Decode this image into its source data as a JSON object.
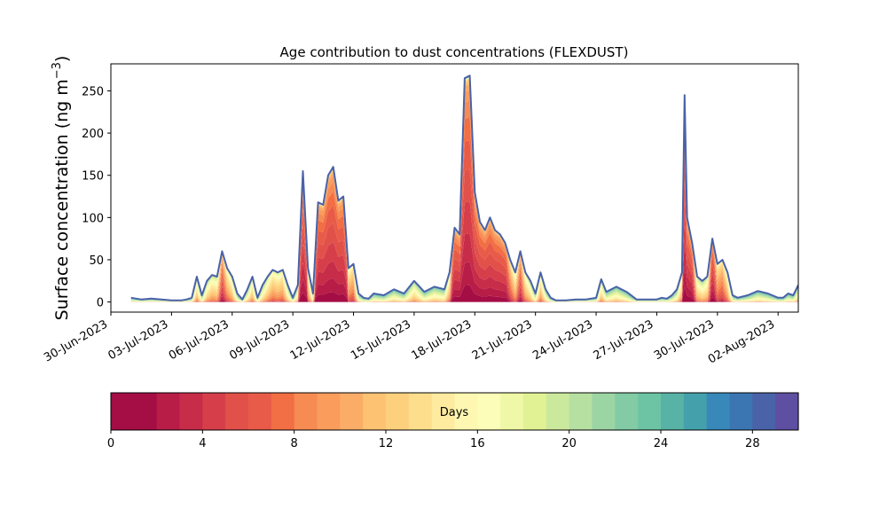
{
  "chart_data": [
    {
      "type": "area",
      "title": "Age contribution to dust concentrations (FLEXDUST)",
      "ylabel": "Surface concentration (ng m",
      "ylabel_sup": "−3",
      "ylabel_close": ")",
      "xlabel": "",
      "ylim": [
        -12,
        282
      ],
      "xlim": [
        "2023-06-30",
        "2023-08-03"
      ],
      "grid": false,
      "y_ticks": [
        0,
        50,
        100,
        150,
        200,
        250
      ],
      "x_ticks": [
        "2023-06-30",
        "2023-07-03",
        "2023-07-06",
        "2023-07-09",
        "2023-07-12",
        "2023-07-15",
        "2023-07-18",
        "2023-07-21",
        "2023-07-24",
        "2023-07-27",
        "2023-07-30",
        "2023-08-02"
      ],
      "x_tick_labels": [
        "30-Jun-2023",
        "03-Jul-2023",
        "06-Jul-2023",
        "09-Jul-2023",
        "12-Jul-2023",
        "15-Jul-2023",
        "18-Jul-2023",
        "21-Jul-2023",
        "24-Jul-2023",
        "27-Jul-2023",
        "30-Jul-2023",
        "02-Aug-2023"
      ],
      "total_color": "#4a62a8",
      "total": [
        [
          "2023-07-01T00:00",
          5
        ],
        [
          "2023-07-01T12:00",
          3
        ],
        [
          "2023-07-02T00:00",
          4
        ],
        [
          "2023-07-02T12:00",
          3
        ],
        [
          "2023-07-03T00:00",
          2
        ],
        [
          "2023-07-03T12:00",
          2
        ],
        [
          "2023-07-03T18:00",
          3
        ],
        [
          "2023-07-04T00:00",
          5
        ],
        [
          "2023-07-04T06:00",
          30
        ],
        [
          "2023-07-04T12:00",
          8
        ],
        [
          "2023-07-04T18:00",
          25
        ],
        [
          "2023-07-05T00:00",
          32
        ],
        [
          "2023-07-05T06:00",
          30
        ],
        [
          "2023-07-05T12:00",
          60
        ],
        [
          "2023-07-05T18:00",
          40
        ],
        [
          "2023-07-06T00:00",
          30
        ],
        [
          "2023-07-06T06:00",
          10
        ],
        [
          "2023-07-06T12:00",
          3
        ],
        [
          "2023-07-06T18:00",
          15
        ],
        [
          "2023-07-07T00:00",
          30
        ],
        [
          "2023-07-07T06:00",
          5
        ],
        [
          "2023-07-07T12:00",
          20
        ],
        [
          "2023-07-07T18:00",
          30
        ],
        [
          "2023-07-08T00:00",
          38
        ],
        [
          "2023-07-08T06:00",
          35
        ],
        [
          "2023-07-08T12:00",
          38
        ],
        [
          "2023-07-08T18:00",
          20
        ],
        [
          "2023-07-09T00:00",
          5
        ],
        [
          "2023-07-09T06:00",
          20
        ],
        [
          "2023-07-09T12:00",
          155
        ],
        [
          "2023-07-09T18:00",
          40
        ],
        [
          "2023-07-10T00:00",
          10
        ],
        [
          "2023-07-10T06:00",
          118
        ],
        [
          "2023-07-10T12:00",
          115
        ],
        [
          "2023-07-10T18:00",
          150
        ],
        [
          "2023-07-11T00:00",
          160
        ],
        [
          "2023-07-11T06:00",
          120
        ],
        [
          "2023-07-11T12:00",
          125
        ],
        [
          "2023-07-11T18:00",
          40
        ],
        [
          "2023-07-12T00:00",
          45
        ],
        [
          "2023-07-12T06:00",
          10
        ],
        [
          "2023-07-12T12:00",
          5
        ],
        [
          "2023-07-12T18:00",
          4
        ],
        [
          "2023-07-13T00:00",
          10
        ],
        [
          "2023-07-13T12:00",
          8
        ],
        [
          "2023-07-14T00:00",
          15
        ],
        [
          "2023-07-14T12:00",
          10
        ],
        [
          "2023-07-15T00:00",
          25
        ],
        [
          "2023-07-15T12:00",
          12
        ],
        [
          "2023-07-16T00:00",
          18
        ],
        [
          "2023-07-16T12:00",
          15
        ],
        [
          "2023-07-16T18:00",
          35
        ],
        [
          "2023-07-17T00:00",
          88
        ],
        [
          "2023-07-17T06:00",
          80
        ],
        [
          "2023-07-17T12:00",
          265
        ],
        [
          "2023-07-17T18:00",
          268
        ],
        [
          "2023-07-18T00:00",
          130
        ],
        [
          "2023-07-18T06:00",
          95
        ],
        [
          "2023-07-18T12:00",
          85
        ],
        [
          "2023-07-18T18:00",
          100
        ],
        [
          "2023-07-19T00:00",
          85
        ],
        [
          "2023-07-19T06:00",
          80
        ],
        [
          "2023-07-19T12:00",
          70
        ],
        [
          "2023-07-19T18:00",
          50
        ],
        [
          "2023-07-20T00:00",
          35
        ],
        [
          "2023-07-20T06:00",
          60
        ],
        [
          "2023-07-20T12:00",
          35
        ],
        [
          "2023-07-20T18:00",
          25
        ],
        [
          "2023-07-21T00:00",
          10
        ],
        [
          "2023-07-21T06:00",
          35
        ],
        [
          "2023-07-21T12:00",
          15
        ],
        [
          "2023-07-21T18:00",
          5
        ],
        [
          "2023-07-22T00:00",
          2
        ],
        [
          "2023-07-22T12:00",
          2
        ],
        [
          "2023-07-23T00:00",
          3
        ],
        [
          "2023-07-23T12:00",
          3
        ],
        [
          "2023-07-24T00:00",
          5
        ],
        [
          "2023-07-24T06:00",
          27
        ],
        [
          "2023-07-24T12:00",
          12
        ],
        [
          "2023-07-25T00:00",
          18
        ],
        [
          "2023-07-25T12:00",
          12
        ],
        [
          "2023-07-26T00:00",
          3
        ],
        [
          "2023-07-26T12:00",
          3
        ],
        [
          "2023-07-27T00:00",
          3
        ],
        [
          "2023-07-27T06:00",
          5
        ],
        [
          "2023-07-27T12:00",
          4
        ],
        [
          "2023-07-27T18:00",
          8
        ],
        [
          "2023-07-28T00:00",
          15
        ],
        [
          "2023-07-28T06:00",
          35
        ],
        [
          "2023-07-28T09:00",
          245
        ],
        [
          "2023-07-28T12:00",
          100
        ],
        [
          "2023-07-28T18:00",
          70
        ],
        [
          "2023-07-29T00:00",
          30
        ],
        [
          "2023-07-29T06:00",
          25
        ],
        [
          "2023-07-29T12:00",
          30
        ],
        [
          "2023-07-29T18:00",
          75
        ],
        [
          "2023-07-30T00:00",
          45
        ],
        [
          "2023-07-30T06:00",
          50
        ],
        [
          "2023-07-30T12:00",
          35
        ],
        [
          "2023-07-30T18:00",
          8
        ],
        [
          "2023-07-31T00:00",
          5
        ],
        [
          "2023-07-31T12:00",
          8
        ],
        [
          "2023-08-01T00:00",
          13
        ],
        [
          "2023-08-01T12:00",
          10
        ],
        [
          "2023-08-02T00:00",
          5
        ],
        [
          "2023-08-02T06:00",
          5
        ],
        [
          "2023-08-02T12:00",
          10
        ],
        [
          "2023-08-02T18:00",
          8
        ],
        [
          "2023-08-03T00:00",
          20
        ]
      ],
      "age_colors": [
        "#a50d45",
        "#b71d47",
        "#c72c48",
        "#d63f4a",
        "#e1514a",
        "#e85b48",
        "#f26e44",
        "#f68b54",
        "#f99c5c",
        "#fbad68",
        "#fdc373",
        "#fdd07e",
        "#fdde8c",
        "#feeb9f",
        "#fef7b1",
        "#fbfdb8",
        "#eff8a6",
        "#e1f294",
        "#cbe99d",
        "#b6e0a2",
        "#9cd5a4",
        "#82cba5",
        "#6cc4a4",
        "#58b2a5",
        "#44a1ac",
        "#3888b9",
        "#3b76b3",
        "#4a62a8",
        "#5e4fa2"
      ]
    },
    {
      "type": "colorbar",
      "label": "Days",
      "range": [
        0,
        30
      ],
      "bins": 30,
      "ticks": [
        0,
        4,
        8,
        12,
        16,
        20,
        24,
        28
      ],
      "tick_labels": [
        "0",
        "4",
        "8",
        "12",
        "16",
        "20",
        "24",
        "28"
      ]
    }
  ]
}
